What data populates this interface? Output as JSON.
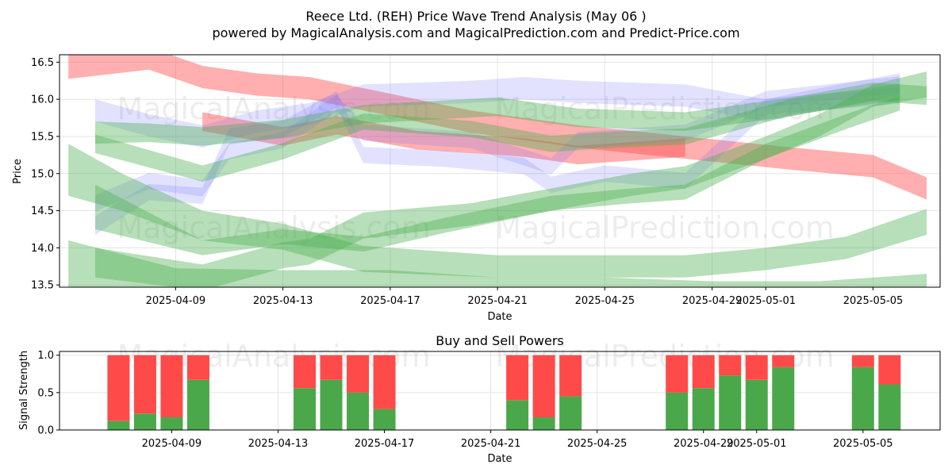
{
  "title_line1": "Reece Ltd. (REH) Price Wave Trend Analysis (May 06 )",
  "title_line2": "powered by MagicalAnalysis.com and MagicalPrediction.com and Predict-Price.com",
  "watermarks": [
    "MagicalAnalysis.com",
    "MagicalPrediction.com"
  ],
  "colors": {
    "red": "#ff4d4d",
    "green": "#4caf50",
    "blue": "#6f6fff",
    "bar_red": "#ff4a4a",
    "bar_green": "#4aa84a"
  },
  "chart_data": [
    {
      "type": "area",
      "xlabel": "Date",
      "ylabel": "Price",
      "ylim": [
        13.47,
        16.6
      ],
      "yticks": [
        "13.5",
        "14.0",
        "14.5",
        "15.0",
        "15.5",
        "16.0",
        "16.5"
      ],
      "xticks": [
        "2025-04-09",
        "2025-04-13",
        "2025-04-17",
        "2025-04-21",
        "2025-04-25",
        "2025-04-29",
        "2025-05-01",
        "2025-05-05"
      ],
      "grid": true,
      "bands": [
        {
          "color": "red",
          "x": [
            "2025-04-05",
            "2025-04-08",
            "2025-04-10",
            "2025-04-12",
            "2025-04-14",
            "2025-04-16",
            "2025-04-20",
            "2025-04-24",
            "2025-04-28",
            "2025-05-02",
            "2025-05-05",
            "2025-05-07"
          ],
          "y": [
            16.45,
            16.55,
            16.3,
            16.2,
            16.15,
            16.0,
            15.7,
            15.5,
            15.35,
            15.2,
            15.1,
            14.8
          ],
          "w": [
            0.35,
            0.3,
            0.3,
            0.3,
            0.3,
            0.3,
            0.3,
            0.3,
            0.3,
            0.3,
            0.3,
            0.3
          ]
        },
        {
          "color": "red",
          "x": [
            "2025-04-10",
            "2025-04-13",
            "2025-04-15",
            "2025-04-18",
            "2025-04-22",
            "2025-04-24",
            "2025-04-28"
          ],
          "y": [
            15.7,
            15.5,
            15.65,
            15.45,
            15.35,
            15.25,
            15.35
          ],
          "w": [
            0.25,
            0.25,
            0.25,
            0.25,
            0.25,
            0.25,
            0.25
          ]
        },
        {
          "color": "blue",
          "x": [
            "2025-04-06",
            "2025-04-08",
            "2025-04-10",
            "2025-04-12",
            "2025-04-14",
            "2025-04-16",
            "2025-04-20",
            "2025-04-22",
            "2025-04-24",
            "2025-04-28",
            "2025-05-01",
            "2025-05-03",
            "2025-05-06"
          ],
          "y": [
            15.85,
            15.65,
            15.5,
            15.7,
            15.8,
            16.05,
            16.1,
            16.15,
            16.1,
            16.05,
            15.85,
            16.0,
            16.2
          ],
          "w": [
            0.3,
            0.3,
            0.3,
            0.3,
            0.3,
            0.3,
            0.3,
            0.3,
            0.3,
            0.3,
            0.3,
            0.3,
            0.3
          ]
        },
        {
          "color": "blue",
          "x": [
            "2025-04-06",
            "2025-04-08",
            "2025-04-10",
            "2025-04-11",
            "2025-04-13",
            "2025-04-15",
            "2025-04-16",
            "2025-04-19",
            "2025-04-22",
            "2025-04-23",
            "2025-04-25",
            "2025-04-28",
            "2025-05-01",
            "2025-05-06"
          ],
          "y": [
            14.3,
            14.75,
            14.7,
            15.5,
            15.6,
            16.0,
            15.25,
            15.2,
            15.1,
            14.85,
            15.0,
            14.9,
            15.9,
            16.05
          ],
          "w": [
            0.25,
            0.22,
            0.22,
            0.22,
            0.22,
            0.22,
            0.22,
            0.22,
            0.22,
            0.22,
            0.22,
            0.22,
            0.22,
            0.22
          ]
        },
        {
          "color": "blue",
          "x": [
            "2025-04-06",
            "2025-04-08",
            "2025-04-10",
            "2025-04-11",
            "2025-04-13",
            "2025-04-15",
            "2025-04-16",
            "2025-04-20",
            "2025-04-23",
            "2025-04-24",
            "2025-04-28",
            "2025-05-01",
            "2025-05-06"
          ],
          "y": [
            14.6,
            14.9,
            14.8,
            15.3,
            15.45,
            15.95,
            15.55,
            15.45,
            15.1,
            15.45,
            15.55,
            16.0,
            16.2
          ],
          "w": [
            0.22,
            0.22,
            0.22,
            0.22,
            0.22,
            0.22,
            0.22,
            0.22,
            0.22,
            0.22,
            0.22,
            0.22,
            0.22
          ]
        },
        {
          "color": "green",
          "x": [
            "2025-04-06",
            "2025-04-08",
            "2025-04-10",
            "2025-04-13",
            "2025-04-16",
            "2025-04-21",
            "2025-04-24",
            "2025-04-28",
            "2025-05-02",
            "2025-05-05",
            "2025-05-07"
          ],
          "y": [
            15.55,
            15.55,
            15.5,
            15.6,
            15.8,
            15.9,
            15.75,
            15.7,
            15.9,
            16.1,
            16.05
          ],
          "w": [
            0.3,
            0.25,
            0.25,
            0.25,
            0.25,
            0.25,
            0.25,
            0.25,
            0.25,
            0.25,
            0.25
          ]
        },
        {
          "color": "green",
          "x": [
            "2025-04-06",
            "2025-04-10",
            "2025-04-13",
            "2025-04-16",
            "2025-04-18",
            "2025-04-20",
            "2025-04-23",
            "2025-04-25",
            "2025-04-28",
            "2025-05-02",
            "2025-05-06"
          ],
          "y": [
            15.4,
            15.0,
            15.3,
            15.7,
            15.65,
            15.6,
            15.4,
            15.45,
            15.5,
            15.9,
            16.1
          ],
          "w": [
            0.25,
            0.22,
            0.22,
            0.22,
            0.22,
            0.22,
            0.22,
            0.22,
            0.22,
            0.22,
            0.22
          ]
        },
        {
          "color": "green",
          "x": [
            "2025-04-05",
            "2025-04-07",
            "2025-04-10",
            "2025-04-13",
            "2025-04-16",
            "2025-04-21",
            "2025-04-25",
            "2025-04-28",
            "2025-05-01",
            "2025-05-04",
            "2025-05-07"
          ],
          "y": [
            15.05,
            14.75,
            14.3,
            14.15,
            13.85,
            13.75,
            13.75,
            13.75,
            13.85,
            14.0,
            14.35
          ],
          "w": [
            0.7,
            0.5,
            0.4,
            0.35,
            0.35,
            0.3,
            0.3,
            0.3,
            0.3,
            0.3,
            0.35
          ]
        },
        {
          "color": "green",
          "x": [
            "2025-04-06",
            "2025-04-10",
            "2025-04-13",
            "2025-04-16",
            "2025-04-19",
            "2025-04-23",
            "2025-04-26",
            "2025-04-28",
            "2025-05-01",
            "2025-05-04",
            "2025-05-06"
          ],
          "y": [
            14.55,
            14.0,
            14.15,
            14.05,
            14.3,
            14.6,
            14.7,
            14.75,
            15.3,
            15.7,
            15.95
          ],
          "w": [
            0.6,
            0.2,
            0.2,
            0.2,
            0.2,
            0.2,
            0.2,
            0.2,
            0.2,
            0.2,
            0.2
          ]
        },
        {
          "color": "green",
          "x": [
            "2025-04-06",
            "2025-04-10",
            "2025-04-13",
            "2025-04-14",
            "2025-04-16",
            "2025-04-20",
            "2025-04-23",
            "2025-04-26",
            "2025-04-28",
            "2025-05-01",
            "2025-05-03",
            "2025-05-05",
            "2025-05-07"
          ],
          "y": [
            13.8,
            13.6,
            13.9,
            13.95,
            14.3,
            14.45,
            14.65,
            14.85,
            14.95,
            15.35,
            15.65,
            16.05,
            16.2
          ],
          "w": [
            0.4,
            0.35,
            0.35,
            0.35,
            0.35,
            0.3,
            0.3,
            0.3,
            0.3,
            0.3,
            0.3,
            0.3,
            0.35
          ]
        },
        {
          "color": "green",
          "x": [
            "2025-04-05",
            "2025-04-09",
            "2025-04-13",
            "2025-04-17",
            "2025-04-21",
            "2025-04-25",
            "2025-04-29",
            "2025-05-03",
            "2025-05-07"
          ],
          "y": [
            13.75,
            13.55,
            13.55,
            13.55,
            13.45,
            13.45,
            13.4,
            13.4,
            13.5
          ],
          "w": [
            0.7,
            0.35,
            0.3,
            0.3,
            0.3,
            0.3,
            0.3,
            0.3,
            0.3
          ]
        }
      ]
    },
    {
      "type": "bar",
      "title": "Buy and Sell Powers",
      "xlabel": "Date",
      "ylabel": "Signal Strength",
      "ylim": [
        0,
        1.05
      ],
      "yticks": [
        "0.0",
        "0.5",
        "1.0"
      ],
      "xticks": [
        "2025-04-09",
        "2025-04-13",
        "2025-04-17",
        "2025-04-21",
        "2025-04-25",
        "2025-04-29",
        "2025-05-01",
        "2025-05-05"
      ],
      "grid": true,
      "dates": [
        "2025-04-07",
        "2025-04-08",
        "2025-04-09",
        "2025-04-10",
        "2025-04-14",
        "2025-04-15",
        "2025-04-16",
        "2025-04-17",
        "2025-04-22",
        "2025-04-23",
        "2025-04-24",
        "2025-04-28",
        "2025-04-29",
        "2025-04-30",
        "2025-05-01",
        "2025-05-02",
        "2025-05-05",
        "2025-05-06"
      ],
      "buy": [
        0.12,
        0.22,
        0.17,
        0.67,
        0.56,
        0.67,
        0.5,
        0.28,
        0.4,
        0.17,
        0.45,
        0.5,
        0.56,
        0.73,
        0.67,
        0.84,
        0.84,
        0.61
      ],
      "sell": [
        0.88,
        0.78,
        0.83,
        0.33,
        0.44,
        0.33,
        0.5,
        0.72,
        0.6,
        0.83,
        0.55,
        0.5,
        0.44,
        0.27,
        0.33,
        0.16,
        0.16,
        0.39
      ]
    }
  ]
}
